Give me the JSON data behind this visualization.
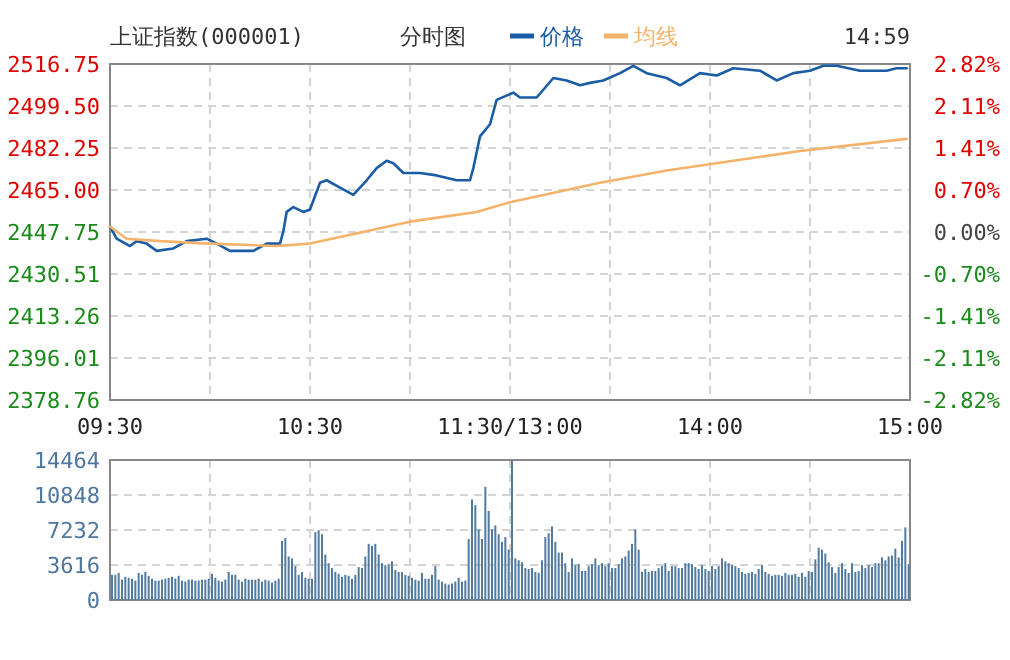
{
  "chart_data": [
    {
      "type": "line",
      "title": "上证指数(000001)",
      "subtitle": "分时图",
      "annotations": [
        "14:59"
      ],
      "legend": "top",
      "grid": true,
      "categories": [
        "09:30",
        null,
        null,
        null,
        null,
        null,
        null,
        null,
        null,
        null,
        null,
        null,
        null,
        null,
        null,
        null,
        null,
        null,
        null,
        null,
        null,
        null,
        null,
        null,
        null,
        null,
        null,
        null,
        null,
        null,
        null,
        null,
        null,
        null,
        null,
        null,
        null,
        null,
        null,
        null,
        null,
        null,
        null,
        null,
        null,
        null,
        null,
        null,
        null,
        null,
        null,
        null,
        null,
        null,
        null,
        null,
        null,
        null,
        null,
        null,
        "10:30",
        null,
        null,
        null,
        null,
        null,
        null,
        null,
        null,
        null,
        null,
        null,
        null,
        null,
        null,
        null,
        null,
        null,
        null,
        null,
        null,
        null,
        null,
        null,
        null,
        null,
        null,
        null,
        null,
        null,
        null,
        null,
        null,
        null,
        null,
        null,
        null,
        null,
        null,
        null,
        null,
        null,
        null,
        null,
        null,
        null,
        null,
        null,
        null,
        null,
        null,
        null,
        null,
        null,
        null,
        null,
        null,
        null,
        null,
        null,
        "11:30/13:00",
        null,
        null,
        null,
        null,
        null,
        null,
        null,
        null,
        null,
        null,
        null,
        null,
        null,
        null,
        null,
        null,
        null,
        null,
        null,
        null,
        null,
        null,
        null,
        null,
        null,
        null,
        null,
        null,
        null,
        null,
        null,
        null,
        null,
        null,
        null,
        null,
        null,
        null,
        null,
        null,
        null,
        null,
        null,
        null,
        null,
        null,
        null,
        null,
        null,
        null,
        null,
        null,
        null,
        null,
        null,
        null,
        null,
        null,
        null,
        "14:00",
        null,
        null,
        null,
        null,
        null,
        null,
        null,
        null,
        null,
        null,
        null,
        null,
        null,
        null,
        null,
        null,
        null,
        null,
        null,
        null,
        null,
        null,
        null,
        null,
        null,
        null,
        null,
        null,
        null,
        null,
        null,
        null,
        null,
        null,
        null,
        null,
        null,
        null,
        null,
        null,
        null,
        null,
        null,
        null,
        null,
        null,
        null,
        null,
        null,
        null,
        null,
        null,
        null,
        null,
        null,
        null,
        null,
        null,
        null,
        "15:00"
      ],
      "ylim": [
        2378.76,
        2516.75
      ],
      "yticks": [
        2378.76,
        2396.01,
        2413.26,
        2430.51,
        2447.75,
        {
          "value": 2465,
          "label": "2465.00"
        },
        2482.25,
        {
          "value": 2499.5,
          "label": "2499.50"
        },
        2516.75
      ],
      "y2lim": [
        -2.82,
        2.82
      ],
      "y2ticks": [
        {
          "value": -2.82,
          "label": "-2.82%"
        },
        {
          "value": -2.11,
          "label": "-2.11%"
        },
        {
          "value": -1.41,
          "label": "-1.41%"
        },
        {
          "value": -0.7,
          "label": "-0.70%"
        },
        {
          "value": 0,
          "label": "0.00%"
        },
        {
          "value": 0.7,
          "label": "0.70%"
        },
        {
          "value": 1.41,
          "label": "1.41%"
        },
        {
          "value": 2.11,
          "label": "2.11%"
        },
        {
          "value": 2.82,
          "label": "2.82%"
        }
      ],
      "series": [
        {
          "name": "价格",
          "color": "#1a5ca6",
          "values": [
            2450,
            null,
            2445,
            null,
            null,
            null,
            2442,
            null,
            2444,
            null,
            null,
            2443,
            null,
            null,
            2440,
            null,
            null,
            null,
            null,
            2441,
            null,
            null,
            null,
            2444,
            null,
            null,
            null,
            null,
            null,
            2445,
            null,
            null,
            2443,
            null,
            null,
            null,
            2440,
            null,
            null,
            null,
            null,
            null,
            null,
            2440,
            null,
            null,
            null,
            2443,
            null,
            null,
            null,
            2443,
            2448,
            2456,
            null,
            2458,
            null,
            null,
            2456,
            null,
            2457,
            null,
            null,
            2468,
            null,
            2469,
            null,
            null,
            null,
            2466,
            null,
            null,
            null,
            2463,
            null,
            null,
            null,
            2469,
            null,
            null,
            2474,
            null,
            null,
            2477,
            null,
            2476,
            null,
            null,
            2472,
            null,
            null,
            null,
            null,
            2472,
            null,
            null,
            null,
            null,
            2471,
            null,
            null,
            null,
            null,
            null,
            2469,
            null,
            null,
            null,
            2469,
            2474,
            null,
            2487,
            null,
            null,
            2492,
            null,
            2502,
            null,
            null,
            null,
            null,
            2505,
            null,
            2503,
            null,
            null,
            null,
            null,
            2503,
            null,
            null,
            null,
            null,
            2511,
            null,
            null,
            null,
            2510,
            null,
            null,
            null,
            2508,
            null,
            null,
            2509,
            null,
            null,
            null,
            2510,
            null,
            null,
            null,
            null,
            2513,
            null,
            null,
            null,
            2516,
            null,
            null,
            null,
            2513,
            null,
            null,
            null,
            null,
            null,
            2511,
            null,
            null,
            null,
            2508,
            null,
            null,
            null,
            null,
            null,
            2513,
            null,
            null,
            null,
            null,
            2512,
            null,
            null,
            null,
            null,
            2515,
            null,
            null,
            null,
            null,
            null,
            null,
            null,
            2514,
            null,
            null,
            null,
            null,
            2510,
            null,
            null,
            null,
            null,
            2513,
            null,
            null,
            null,
            null,
            2514,
            null,
            null,
            null,
            2516,
            null,
            null,
            null,
            2516,
            null,
            null,
            null,
            null,
            null,
            null,
            2514,
            null,
            null,
            null,
            null,
            null,
            null,
            null,
            2514,
            null,
            null,
            2515,
            null,
            null,
            2515,
            null
          ]
        },
        {
          "name": "均线",
          "color": "#f4b26a",
          "values": [
            2450,
            null,
            null,
            null,
            null,
            2445,
            null,
            null,
            null,
            null,
            null,
            null,
            null,
            null,
            null,
            2444,
            null,
            null,
            null,
            null,
            null,
            null,
            null,
            null,
            null,
            null,
            null,
            null,
            null,
            null,
            2443,
            null,
            null,
            null,
            null,
            null,
            null,
            null,
            null,
            null,
            null,
            null,
            null,
            null,
            null,
            null,
            null,
            null,
            null,
            null,
            2442,
            null,
            null,
            null,
            null,
            null,
            null,
            null,
            null,
            null,
            2443,
            null,
            null,
            null,
            null,
            null,
            null,
            null,
            null,
            null,
            null,
            null,
            null,
            null,
            null,
            null,
            null,
            null,
            null,
            null,
            null,
            null,
            null,
            null,
            null,
            null,
            null,
            null,
            null,
            null,
            2452,
            null,
            null,
            null,
            null,
            null,
            null,
            null,
            null,
            null,
            null,
            null,
            null,
            null,
            null,
            null,
            null,
            null,
            null,
            null,
            2456,
            null,
            null,
            null,
            null,
            null,
            null,
            null,
            null,
            null,
            2460,
            null,
            null,
            null,
            null,
            null,
            null,
            null,
            null,
            null,
            null,
            null,
            null,
            null,
            null,
            null,
            null,
            null,
            null,
            null,
            null,
            null,
            null,
            null,
            null,
            null,
            null,
            2468,
            null,
            null,
            null,
            null,
            null,
            null,
            null,
            null,
            null,
            null,
            null,
            null,
            null,
            null,
            null,
            null,
            null,
            null,
            null,
            2473,
            null,
            null,
            null,
            null,
            null,
            null,
            null,
            null,
            null,
            null,
            null,
            null,
            null,
            null,
            null,
            null,
            null,
            null,
            null,
            2477,
            null,
            null,
            null,
            null,
            null,
            null,
            null,
            null,
            null,
            null,
            null,
            null,
            null,
            null,
            null,
            null,
            null,
            null,
            null,
            2481,
            null,
            null,
            null,
            null,
            null,
            null,
            null,
            null,
            null,
            null,
            null,
            null,
            null,
            null,
            null,
            null,
            null,
            null,
            null,
            null,
            null,
            null,
            null,
            null,
            null,
            null,
            null,
            null,
            null,
            null,
            null,
            2486,
            null
          ]
        }
      ]
    },
    {
      "type": "bar",
      "grid": true,
      "tick_labels": "y",
      "categories": [
        null,
        null,
        null,
        null,
        null,
        null,
        null,
        null,
        null,
        null,
        null,
        null,
        null,
        null,
        null,
        null,
        null,
        null,
        null,
        null,
        null,
        null,
        null,
        null,
        null,
        null,
        null,
        null,
        null,
        null,
        null,
        null,
        null,
        null,
        null,
        null,
        null,
        null,
        null,
        null,
        null,
        null,
        null,
        null,
        null,
        null,
        null,
        null,
        null,
        null,
        null,
        null,
        null,
        null,
        null,
        null,
        null,
        null,
        null,
        null,
        null,
        null,
        null,
        null,
        null,
        null,
        null,
        null,
        null,
        null,
        null,
        null,
        null,
        null,
        null,
        null,
        null,
        null,
        null,
        null,
        null,
        null,
        null,
        null,
        null,
        null,
        null,
        null,
        null,
        null,
        null,
        null,
        null,
        null,
        null,
        null,
        null,
        null,
        null,
        null,
        null,
        null,
        null,
        null,
        null,
        null,
        null,
        null,
        null,
        null,
        null,
        null,
        null,
        null,
        null,
        null,
        null,
        null,
        null,
        null,
        null,
        null,
        null,
        null,
        null,
        null,
        null,
        null,
        null,
        null,
        null,
        null,
        null,
        null,
        null,
        null,
        null,
        null,
        null,
        null,
        null,
        null,
        null,
        null,
        null,
        null,
        null,
        null,
        null,
        null,
        null,
        null,
        null,
        null,
        null,
        null,
        null,
        null,
        null,
        null,
        null,
        null,
        null,
        null,
        null,
        null,
        null,
        null,
        null,
        null,
        null,
        null,
        null,
        null,
        null,
        null,
        null,
        null,
        null,
        null,
        null,
        null,
        null,
        null,
        null,
        null,
        null,
        null,
        null,
        null,
        null,
        null,
        null,
        null,
        null,
        null,
        null,
        null,
        null,
        null,
        null,
        null,
        null,
        null,
        null,
        null,
        null,
        null,
        null,
        null,
        null,
        null,
        null,
        null,
        null,
        null,
        null,
        null,
        null,
        null,
        null,
        null,
        null,
        null,
        null,
        null,
        null,
        null,
        null,
        null,
        null,
        null,
        null,
        null,
        null,
        null,
        null,
        null,
        null,
        null,
        null
      ],
      "ylim": [
        0,
        14464
      ],
      "yticks": [
        0,
        3616,
        7232,
        10848,
        14464
      ],
      "series": [
        {
          "color": "#537ba0",
          "values": [
            2600,
            2600,
            2800,
            2100,
            2400,
            2300,
            2200,
            2000,
            2800,
            2600,
            2900,
            2500,
            2200,
            2000,
            2000,
            2100,
            2200,
            2300,
            2400,
            2200,
            2500,
            2000,
            1900,
            2100,
            2100,
            2000,
            2000,
            2100,
            2100,
            2200,
            2700,
            2300,
            2000,
            1900,
            2100,
            2900,
            2600,
            2600,
            2100,
            1900,
            2200,
            2100,
            2100,
            2100,
            2200,
            1900,
            2100,
            2000,
            1800,
            2000,
            2200,
            6100,
            6400,
            4500,
            4300,
            3500,
            2600,
            2900,
            2300,
            2200,
            2200,
            7000,
            7200,
            6800,
            4700,
            3800,
            3300,
            2900,
            2700,
            2400,
            2600,
            2500,
            2200,
            2600,
            3400,
            3300,
            4500,
            5800,
            5600,
            5800,
            4700,
            3800,
            3600,
            3700,
            4000,
            3100,
            2900,
            2900,
            2600,
            2500,
            2300,
            2100,
            2000,
            2800,
            2200,
            2200,
            2600,
            3500,
            2100,
            1900,
            1700,
            1600,
            1700,
            1900,
            2300,
            1900,
            2000,
            6300,
            10400,
            9800,
            7300,
            6300,
            11700,
            9200,
            7300,
            7700,
            6800,
            6000,
            6500,
            5200,
            14400,
            4300,
            4100,
            3900,
            3300,
            3200,
            3300,
            2900,
            2800,
            4100,
            6500,
            6900,
            7600,
            6000,
            4900,
            4900,
            3800,
            2900,
            4300,
            3600,
            3700,
            3000,
            3000,
            3500,
            3700,
            4300,
            3600,
            3800,
            3500,
            3800,
            3300,
            3300,
            3700,
            4300,
            4500,
            5100,
            5800,
            7300,
            5200,
            2900,
            3200,
            2900,
            3000,
            3000,
            3300,
            3500,
            3800,
            3000,
            3500,
            3500,
            3300,
            3300,
            3800,
            3800,
            3700,
            3400,
            3200,
            3600,
            3200,
            3000,
            3500,
            3200,
            3500,
            4300,
            4000,
            3800,
            3600,
            3500,
            3300,
            2900,
            2700,
            2800,
            2900,
            2700,
            3200,
            3600,
            2900,
            2700,
            2500,
            2600,
            2600,
            2500,
            2800,
            2600,
            2600,
            2700,
            2400,
            2800,
            2400,
            3000,
            2900,
            4200,
            5400,
            5200,
            4800,
            3900,
            3400,
            2800,
            3400,
            3800,
            3200,
            2800,
            3800,
            2900,
            3000,
            3600,
            3300,
            3600,
            3400,
            3800,
            3800,
            4400,
            4100,
            4500,
            4600,
            5300,
            4400,
            6100,
            7500,
            3700,
            null
          ]
        }
      ]
    }
  ]
}
